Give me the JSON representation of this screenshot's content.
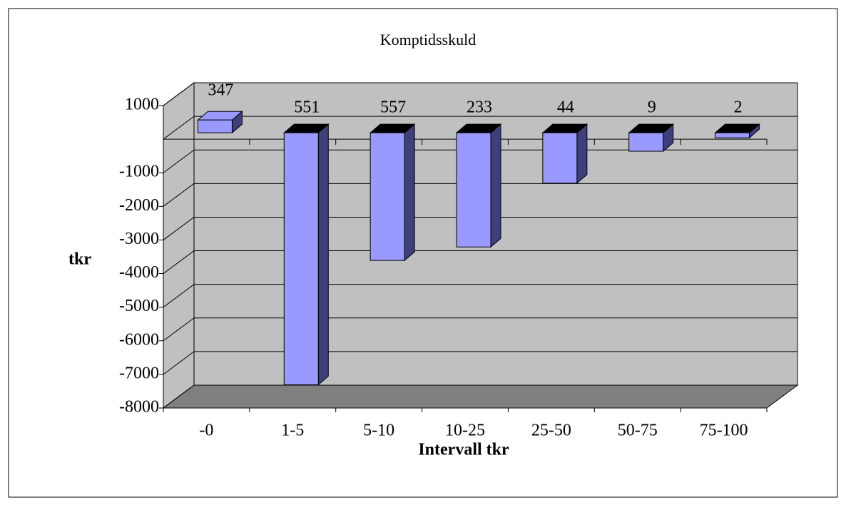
{
  "chart_data": {
    "type": "bar3d",
    "title": "Komptidsskuld",
    "categories": [
      "-0",
      "1-5",
      "5-10",
      "10-25",
      "25-50",
      "50-75",
      "75-100"
    ],
    "values": [
      380,
      -7500,
      -3800,
      -3400,
      -1500,
      -550,
      -150
    ],
    "counts": [
      347,
      551,
      557,
      233,
      44,
      9,
      2
    ],
    "color": "#9999ff",
    "side_color": "#3f3f7a",
    "top_color": "#000000",
    "wall_color": "#c0c0c0",
    "floor_color": "#808080",
    "ylabel": "tkr",
    "xlabel": "Intervall tkr",
    "ylim": [
      -8000,
      1000
    ],
    "yticks": [
      1000,
      -1000,
      -2000,
      -3000,
      -4000,
      -5000,
      -6000,
      -7000,
      -8000
    ],
    "grid": true
  }
}
